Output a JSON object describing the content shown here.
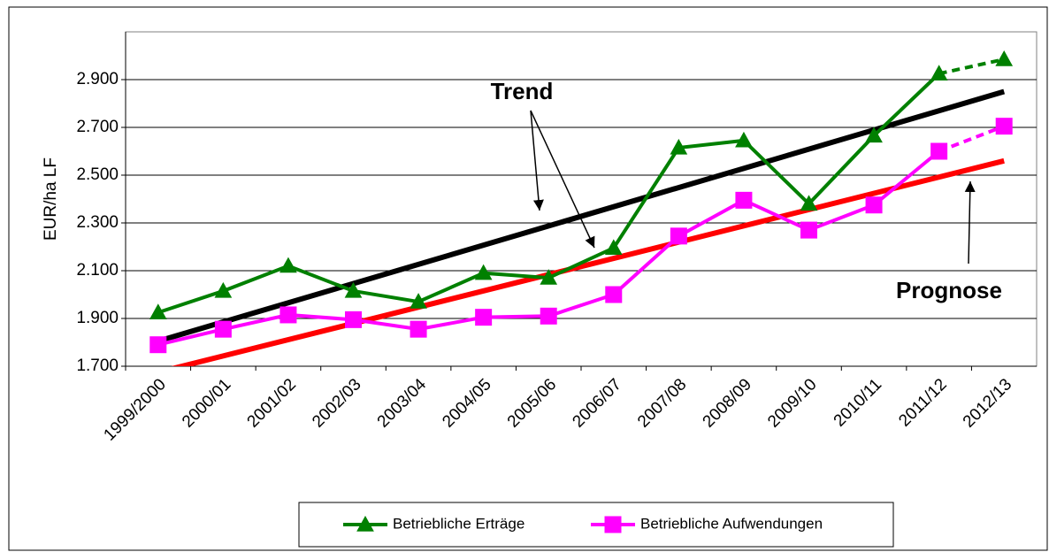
{
  "chart_data": {
    "type": "line",
    "y_label": "EUR/ha LF",
    "categories": [
      "1999/2000",
      "2000/01",
      "2001/02",
      "2002/03",
      "2003/04",
      "2004/05",
      "2005/06",
      "2006/07",
      "2007/08",
      "2008/09",
      "2009/10",
      "2010/11",
      "2011/12",
      "2012/13"
    ],
    "series": [
      {
        "name": "Betriebliche Erträge",
        "color": "#008000",
        "marker": "triangle",
        "values": [
          1925,
          2015,
          2120,
          2015,
          1970,
          2090,
          2070,
          2195,
          2615,
          2645,
          2380,
          2665,
          2925,
          2985
        ]
      },
      {
        "name": "Betriebliche Aufwendungen",
        "color": "#ff00ff",
        "marker": "square",
        "values": [
          1790,
          1855,
          1915,
          1895,
          1855,
          1905,
          1910,
          2000,
          2245,
          2395,
          2270,
          2375,
          2600,
          2705
        ]
      }
    ],
    "dashed_last_segment": true,
    "trend_lines": [
      {
        "color": "#000000",
        "values": [
          1805,
          2850
        ]
      },
      {
        "color": "#ff0000",
        "values": [
          1675,
          2560
        ]
      }
    ],
    "annotations": [
      "Trend",
      "Prognose"
    ],
    "ylim": [
      1700,
      3100
    ],
    "yticks": [
      {
        "value": 1700,
        "label": "1.700"
      },
      {
        "value": 1900,
        "label": "1.900"
      },
      {
        "value": 2100,
        "label": "2.100"
      },
      {
        "value": 2300,
        "label": "2.300"
      },
      {
        "value": 2500,
        "label": "2.500"
      },
      {
        "value": 2700,
        "label": "2.700"
      },
      {
        "value": 2900,
        "label": "2.900"
      }
    ],
    "grid": true,
    "legend": "bottom"
  }
}
